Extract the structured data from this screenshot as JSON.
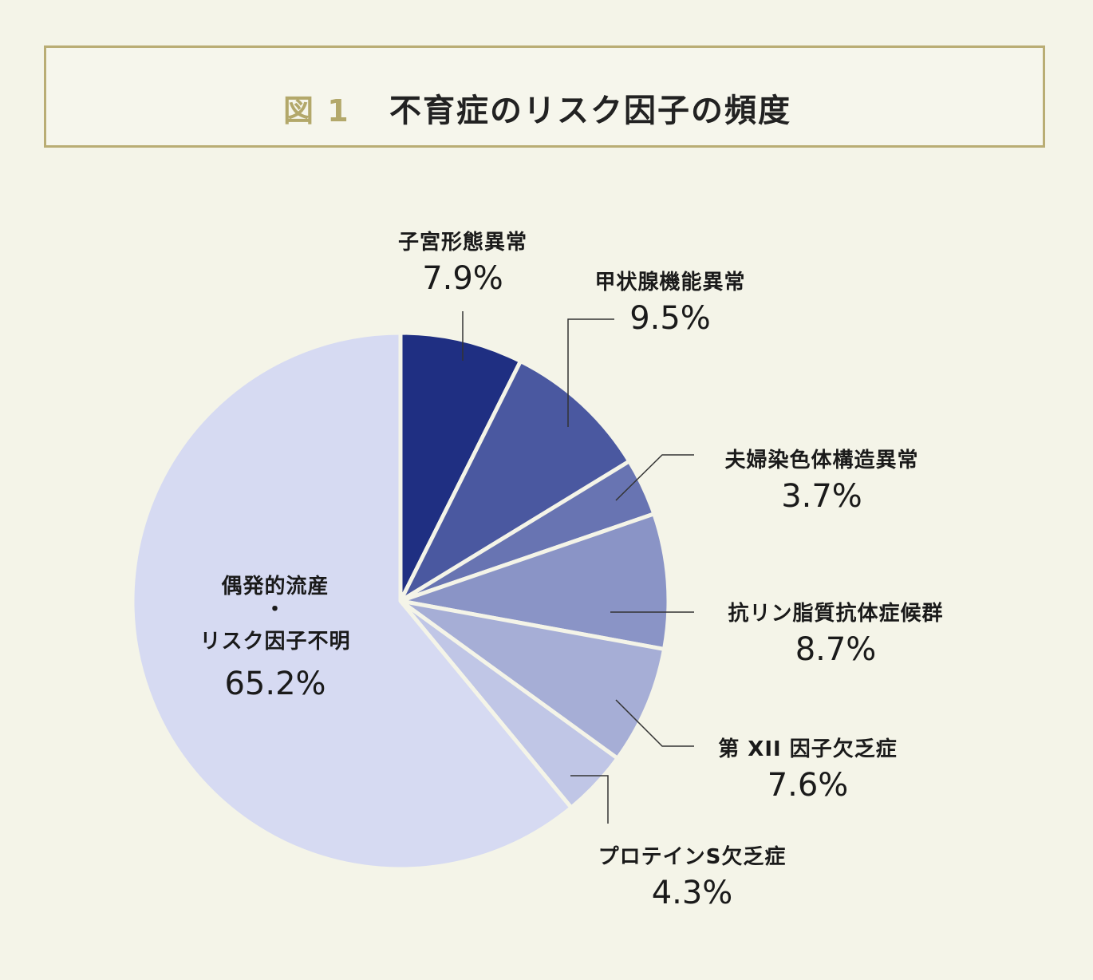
{
  "header": {
    "figure_label": "図 1",
    "title": "不育症のリスク因子の頻度"
  },
  "chart_data": {
    "type": "pie",
    "title": "不育症のリスク因子の頻度",
    "start": "12 o'clock, clockwise",
    "slices": [
      {
        "label": "子宮形態異常",
        "value": 7.9,
        "display": "7.9%",
        "color": "#1f2f82"
      },
      {
        "label": "甲状腺機能異常",
        "value": 9.5,
        "display": "9.5%",
        "color": "#4a58a0"
      },
      {
        "label": "夫婦染色体構造異常",
        "value": 3.7,
        "display": "3.7%",
        "color": "#6874b2"
      },
      {
        "label": "抗リン脂質抗体症候群",
        "value": 8.7,
        "display": "8.7%",
        "color": "#8a94c6"
      },
      {
        "label": "第 XII 因子欠乏症",
        "value": 7.6,
        "display": "7.6%",
        "color": "#a6aed6"
      },
      {
        "label": "プロテインS欠乏症",
        "value": 4.3,
        "display": "4.3%",
        "color": "#c0c6e6"
      },
      {
        "label_lines": [
          "偶発的流産",
          "・",
          "リスク因子不明"
        ],
        "value": 65.2,
        "display": "65.2%",
        "color": "#d6daf2"
      }
    ]
  }
}
